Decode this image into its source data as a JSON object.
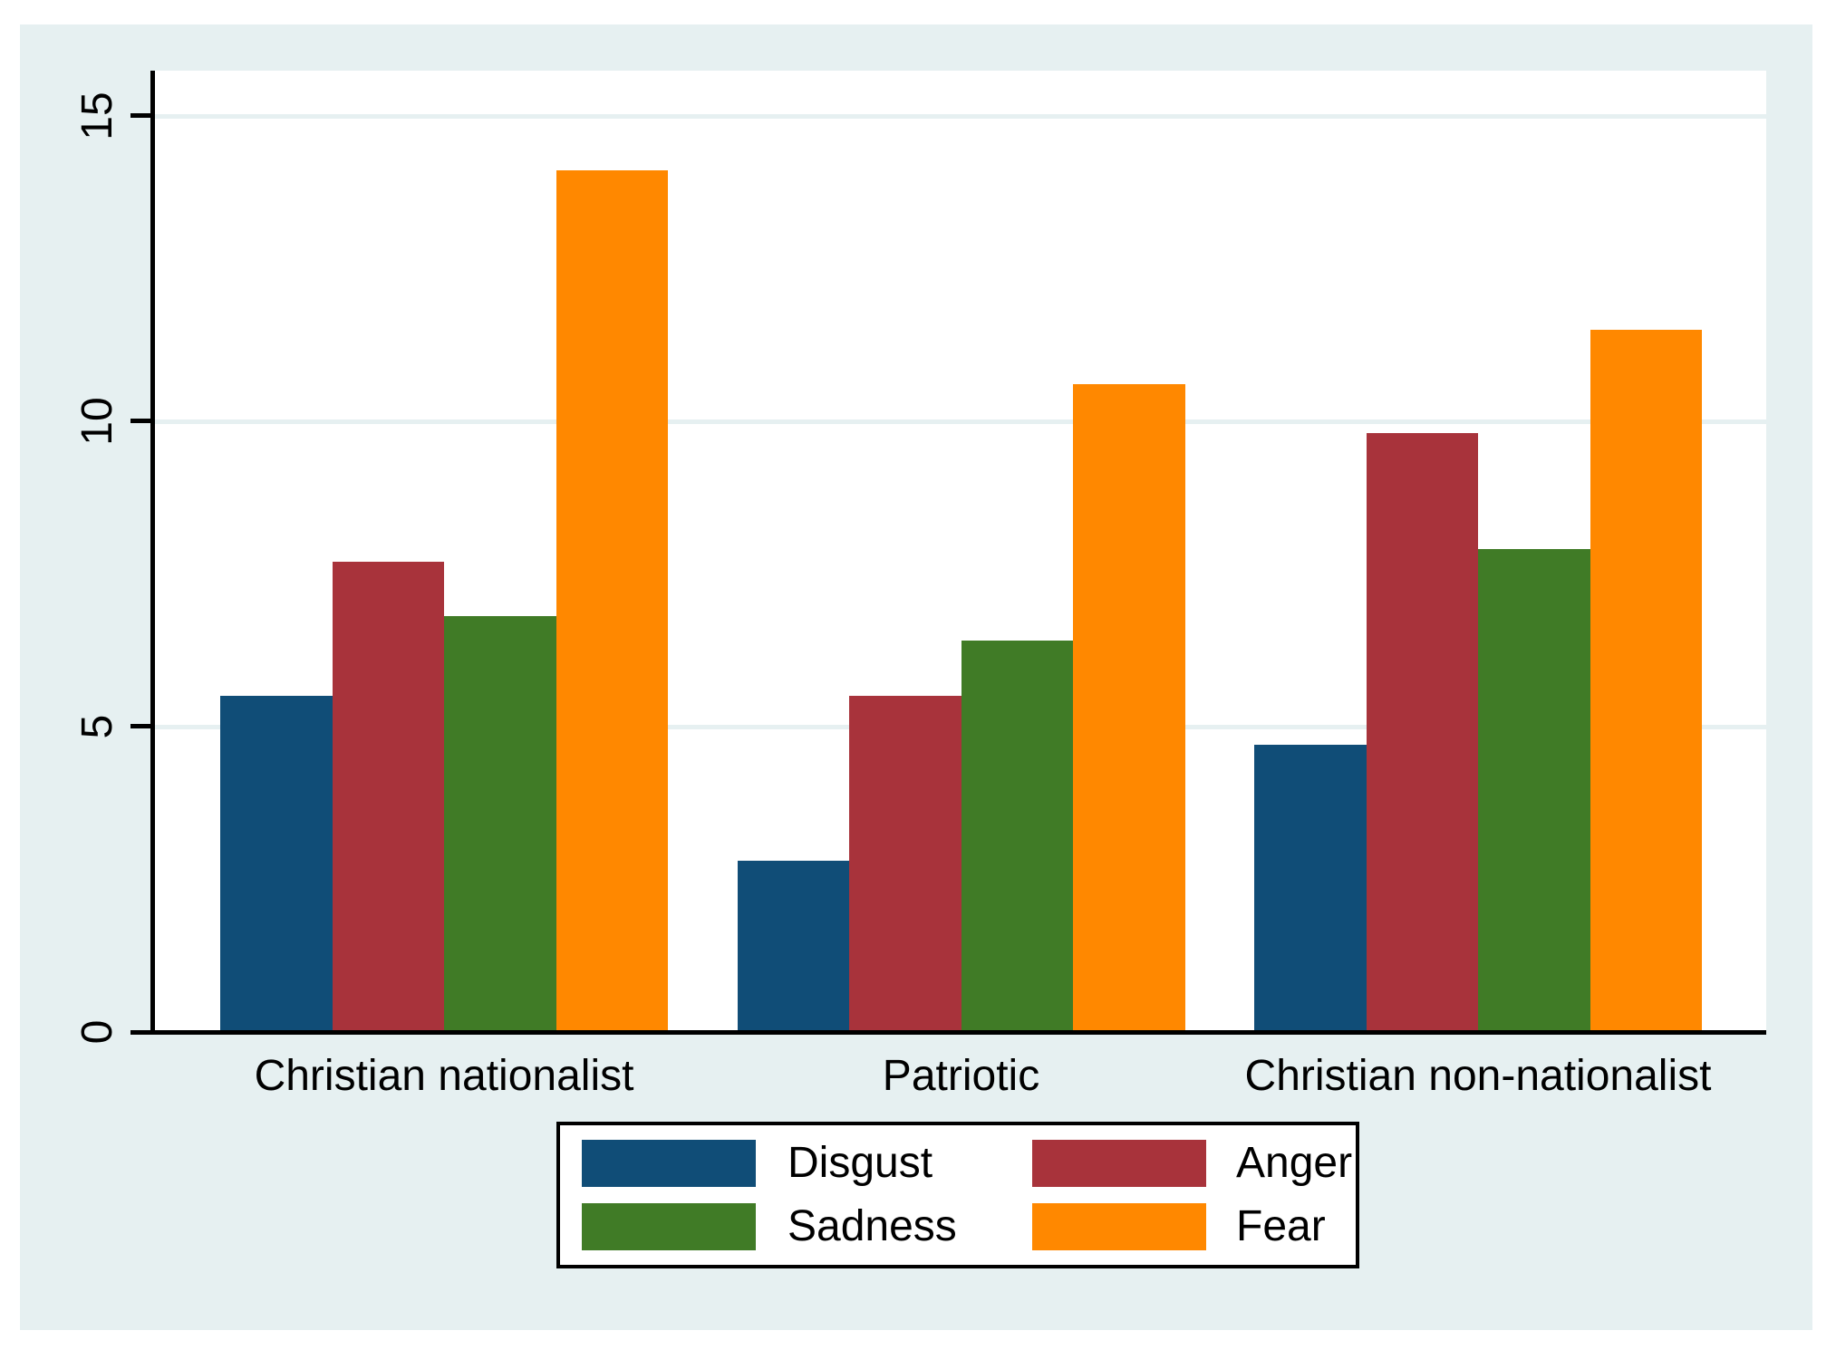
{
  "chart_data": {
    "type": "bar",
    "categories": [
      "Christian nationalist",
      "Patriotic",
      "Christian non-nationalist"
    ],
    "series": [
      {
        "name": "Disgust",
        "color": "#104d77",
        "values": [
          5.5,
          2.8,
          4.7
        ]
      },
      {
        "name": "Anger",
        "color": "#a8333b",
        "values": [
          7.7,
          5.5,
          9.8
        ]
      },
      {
        "name": "Sadness",
        "color": "#407b26",
        "values": [
          6.8,
          6.4,
          7.9
        ]
      },
      {
        "name": "Fear",
        "color": "#ff8800",
        "values": [
          14.1,
          10.6,
          11.5
        ]
      }
    ],
    "xlabel": "",
    "ylabel": "",
    "yticks": [
      0,
      5,
      10,
      15
    ],
    "ylim": [
      0,
      15.7
    ],
    "grid": "horizontal",
    "gridline_color": "#e6f0f1",
    "legend_position": "bottom",
    "legend_rows": [
      [
        "Disgust",
        "Anger"
      ],
      [
        "Sadness",
        "Fear"
      ]
    ],
    "background_color": "#e6f0f1",
    "plot_background_color": "#ffffff"
  }
}
